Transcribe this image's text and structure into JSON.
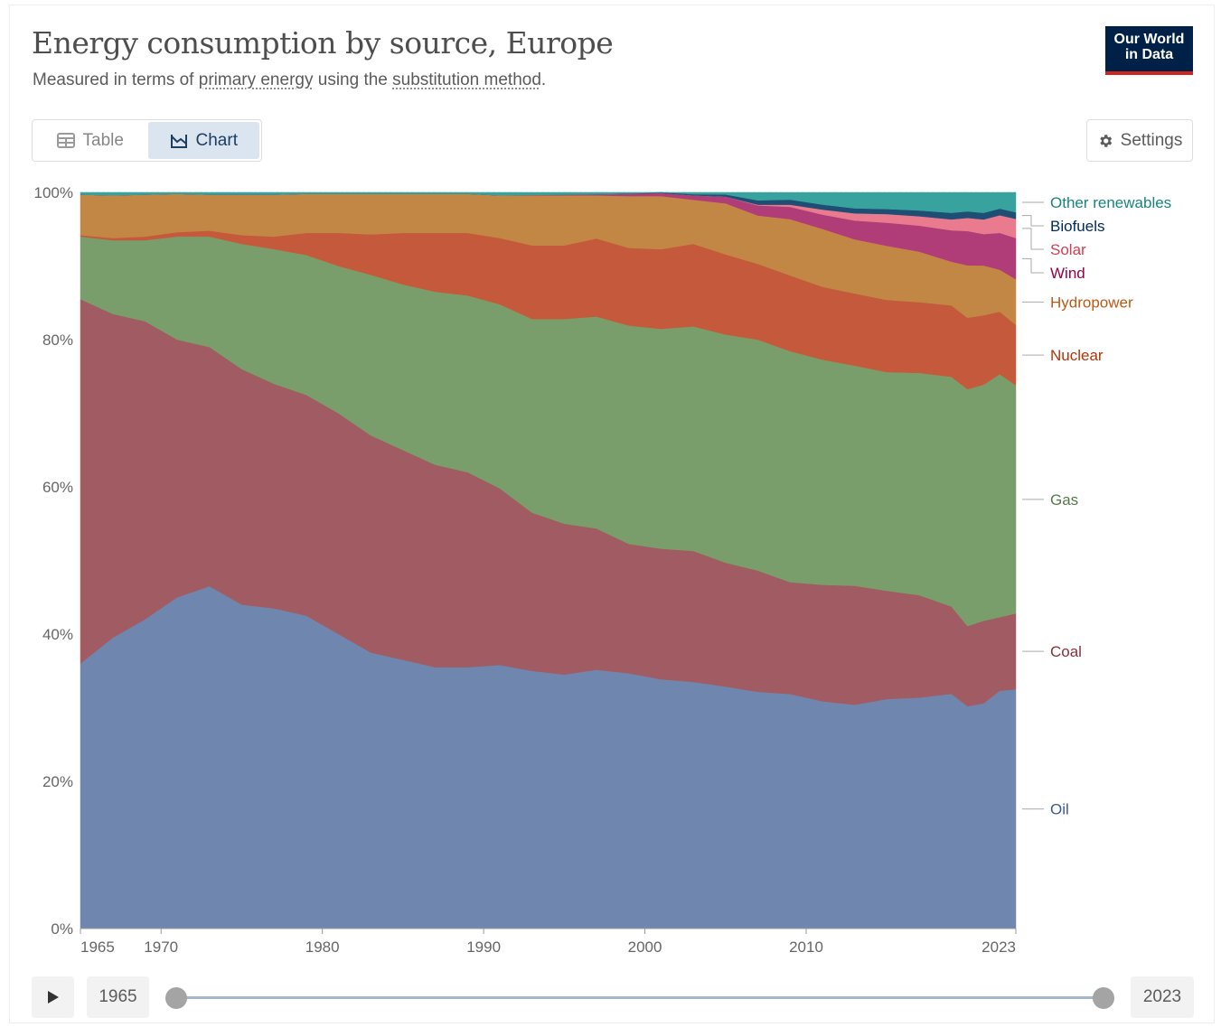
{
  "header": {
    "title": "Energy consumption by source, Europe",
    "subtitle_part1": "Measured in terms of ",
    "subtitle_link1": "primary energy",
    "subtitle_part2": " using the ",
    "subtitle_link2": "substitution method",
    "subtitle_part3": ".",
    "logo_line1": "Our World",
    "logo_line2": "in Data"
  },
  "tabs": [
    {
      "label": "Table",
      "icon": "table-icon",
      "active": false
    },
    {
      "label": "Chart",
      "icon": "chart-icon",
      "active": true
    }
  ],
  "settings_label": "Settings",
  "timeline": {
    "start_year": "1965",
    "end_year": "2023",
    "play_icon": "play-icon"
  },
  "chart_data": {
    "type": "area",
    "stacked": true,
    "normalized": true,
    "x": [
      1965,
      1967,
      1969,
      1971,
      1973,
      1975,
      1977,
      1979,
      1981,
      1983,
      1985,
      1987,
      1989,
      1991,
      1993,
      1995,
      1997,
      1999,
      2001,
      2003,
      2005,
      2007,
      2009,
      2011,
      2013,
      2015,
      2017,
      2019,
      2020,
      2021,
      2022,
      2023
    ],
    "xticks": [
      "1965",
      "1970",
      "1980",
      "1990",
      "2000",
      "2010",
      "2023"
    ],
    "yticks": [
      "0%",
      "20%",
      "40%",
      "60%",
      "80%",
      "100%"
    ],
    "ylim": [
      0,
      100
    ],
    "grid": "horizontal",
    "legend_position": "right, inline labels",
    "series": [
      {
        "name": "Oil",
        "color": "#6f87af",
        "label_color": "#3c5a8c",
        "values": [
          36.0,
          39.5,
          42.0,
          45.0,
          46.5,
          44.0,
          43.5,
          42.5,
          40.0,
          37.5,
          36.5,
          35.5,
          35.5,
          35.8,
          35.0,
          34.5,
          34.8,
          34.5,
          33.8,
          33.5,
          33.2,
          32.8,
          32.5,
          31.8,
          31.0,
          31.8,
          32.0,
          32.2,
          30.5,
          30.8,
          32.3,
          32.5
        ]
      },
      {
        "name": "Coal",
        "color": "#a05c62",
        "label_color": "#883039",
        "values": [
          49.5,
          44.0,
          40.5,
          35.0,
          32.5,
          32.0,
          30.5,
          30.0,
          30.0,
          29.5,
          28.5,
          27.5,
          26.5,
          24.0,
          21.5,
          20.5,
          19.0,
          17.5,
          17.7,
          17.8,
          17.0,
          16.8,
          15.5,
          16.3,
          16.5,
          15.0,
          14.2,
          12.0,
          11.0,
          11.3,
          10.0,
          10.3
        ]
      },
      {
        "name": "Gas",
        "color": "#7a9e6b",
        "label_color": "#58794b",
        "values": [
          8.5,
          10.0,
          11.0,
          14.0,
          15.0,
          17.0,
          18.3,
          19.0,
          20.0,
          21.8,
          22.5,
          23.5,
          24.0,
          25.0,
          26.3,
          27.8,
          28.5,
          29.5,
          29.8,
          30.5,
          31.3,
          32.0,
          32.0,
          31.5,
          30.5,
          30.3,
          30.8,
          31.5,
          32.5,
          32.3,
          33.0,
          31.0
        ]
      },
      {
        "name": "Nuclear",
        "color": "#c45a3b",
        "label_color": "#b13507",
        "values": [
          0.2,
          0.3,
          0.5,
          0.6,
          0.8,
          1.2,
          1.7,
          3.0,
          4.5,
          5.5,
          7.0,
          8.0,
          8.5,
          9.0,
          10.0,
          10.0,
          10.5,
          10.5,
          10.8,
          11.2,
          11.0,
          10.5,
          10.5,
          10.2,
          10.0,
          10.0,
          9.8,
          9.8,
          9.8,
          9.5,
          8.5,
          8.2
        ]
      },
      {
        "name": "Hydropower",
        "color": "#c38745",
        "label_color": "#be5915",
        "values": [
          5.5,
          5.8,
          5.7,
          5.2,
          4.9,
          5.5,
          5.7,
          5.3,
          5.3,
          5.5,
          5.3,
          5.3,
          5.3,
          5.8,
          6.8,
          6.8,
          5.8,
          7.0,
          7.2,
          6.0,
          7.0,
          6.7,
          7.8,
          8.1,
          7.5,
          7.5,
          7.0,
          6.0,
          7.2,
          6.8,
          5.7,
          6.2
        ]
      },
      {
        "name": "Wind",
        "color": "#b03c78",
        "label_color": "#970046",
        "values": [
          0,
          0,
          0,
          0,
          0,
          0,
          0,
          0,
          0,
          0,
          0,
          0,
          0,
          0,
          0.05,
          0.1,
          0.15,
          0.3,
          0.4,
          0.6,
          0.9,
          1.4,
          1.7,
          2.0,
          2.6,
          3.2,
          3.6,
          4.3,
          4.7,
          4.3,
          5.0,
          5.6
        ]
      },
      {
        "name": "Solar",
        "color": "#ea7b8e",
        "label_color": "#d73c50",
        "values": [
          0,
          0,
          0,
          0,
          0,
          0,
          0,
          0,
          0,
          0,
          0,
          0,
          0,
          0,
          0,
          0,
          0,
          0,
          0,
          0,
          0.02,
          0.1,
          0.3,
          0.7,
          1.0,
          1.2,
          1.3,
          1.5,
          1.8,
          2.0,
          2.4,
          2.6
        ]
      },
      {
        "name": "Biofuels",
        "color": "#1f4e74",
        "label_color": "#00295b",
        "values": [
          0,
          0,
          0,
          0,
          0,
          0,
          0,
          0,
          0,
          0,
          0,
          0,
          0,
          0,
          0,
          0,
          0,
          0.05,
          0.1,
          0.15,
          0.3,
          0.6,
          0.7,
          0.7,
          0.7,
          0.7,
          0.8,
          0.9,
          0.9,
          0.9,
          0.9,
          0.9
        ]
      },
      {
        "name": "Other renewables",
        "color": "#38a39e",
        "label_color": "#18847d",
        "values": [
          0.3,
          0.4,
          0.3,
          0.2,
          0.3,
          0.3,
          0.3,
          0.2,
          0.2,
          0.2,
          0.2,
          0.2,
          0.2,
          0.4,
          0.35,
          0.3,
          0.25,
          0.15,
          0.0,
          0.25,
          0.28,
          1.1,
          1.0,
          1.7,
          2.2,
          2.3,
          2.5,
          2.8,
          2.6,
          2.8,
          2.2,
          2.7
        ]
      }
    ]
  }
}
